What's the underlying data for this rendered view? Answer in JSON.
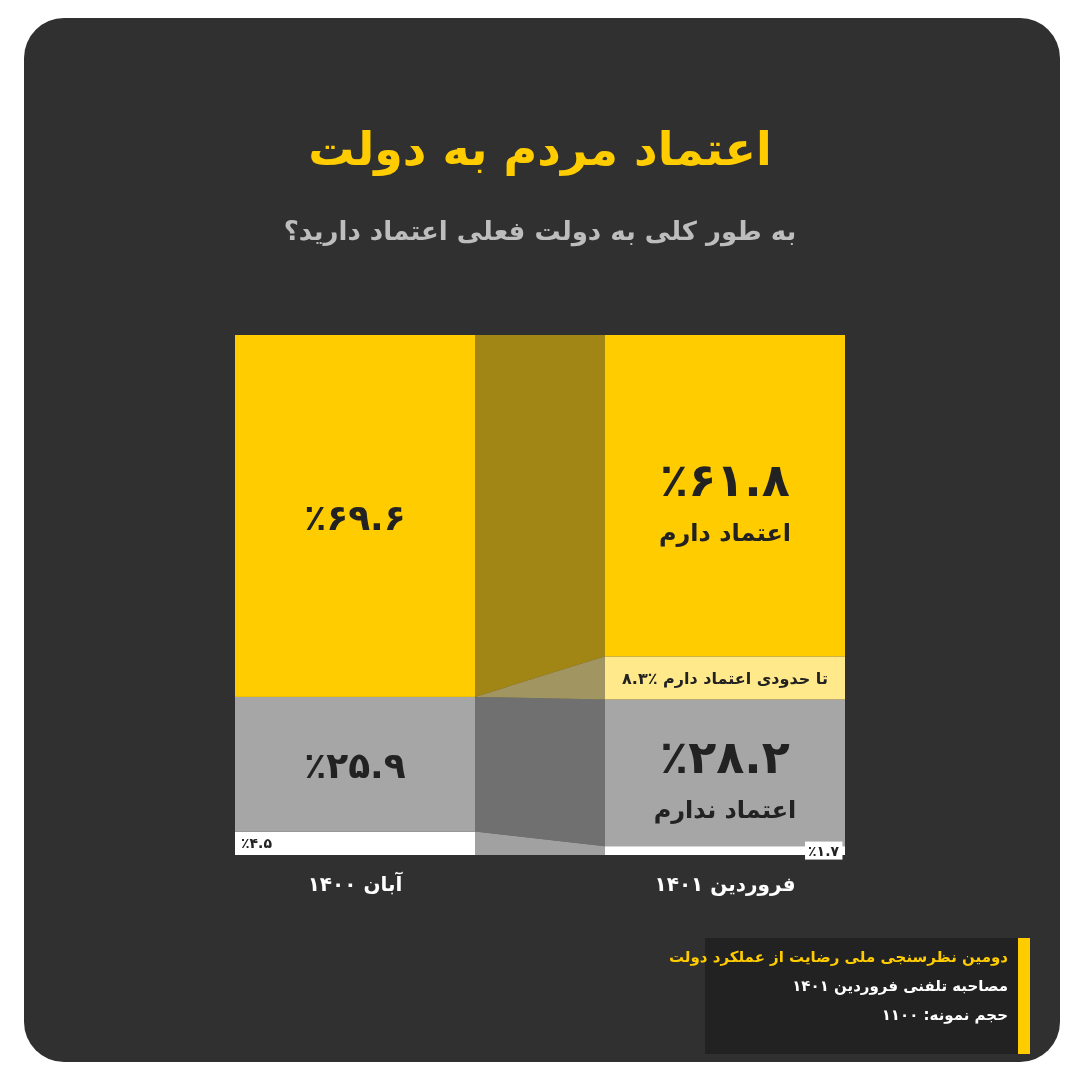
{
  "chart_data": {
    "type": "bar",
    "stacked": true,
    "title": "اعتماد مردم به دولت",
    "subtitle": "به طور کلی به دولت فعلی اعتماد دارید؟",
    "categories": [
      "آبان ۱۴۰۰",
      "فروردین ۱۴۰۱"
    ],
    "ylim": [
      0,
      100
    ],
    "series": [
      {
        "color": "#ffffff",
        "values": [
          4.5,
          1.7
        ],
        "value_labels": [
          "٪۴.۵",
          "٪۱.۷"
        ]
      },
      {
        "name": "اعتماد ندارم",
        "color": "#a6a6a6",
        "values": [
          25.9,
          28.2
        ],
        "value_labels": [
          "٪۲۵.۹",
          "٪۲۸.۲"
        ]
      },
      {
        "name": "تا حدودی اعتماد دارم",
        "color": "#ffe98a",
        "values": [
          null,
          8.3
        ],
        "value_labels": [
          null,
          "٪۸.۳"
        ]
      },
      {
        "name": "اعتماد دارم",
        "color": "#ffcc00",
        "values": [
          69.6,
          61.8
        ],
        "value_labels": [
          "٪۶۹.۶",
          "٪۶۱.۸"
        ]
      }
    ],
    "annotations": [
      "دومین نظرسنجی ملی رضایت از عملکرد دولت",
      "مصاحبه تلفنی فروردین ۱۴۰۱",
      "حجم نمونه: ۱۱۰۰"
    ]
  }
}
